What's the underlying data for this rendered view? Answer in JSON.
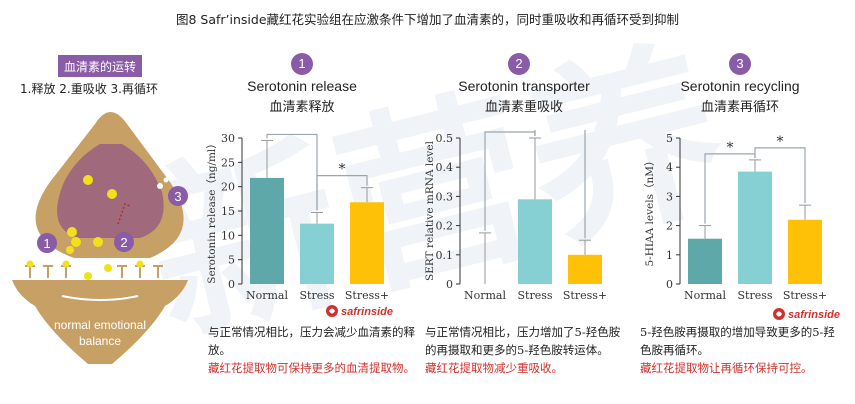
{
  "figure_title": "图8 Safr’inside藏红花实验组在应激条件下增加了血清素的，同时重吸收和再循环受到抑制",
  "legend": {
    "tag": "血清素的运转",
    "list": "1.释放 2.重吸收 3.再循环"
  },
  "diagram": {
    "caption_line1": "normal emotional",
    "caption_line2": "balance",
    "markers": [
      "1",
      "2",
      "3"
    ]
  },
  "watermark": "新营养",
  "brand": {
    "name": "safrinside",
    "mark": "®"
  },
  "colors": {
    "normal": "#5fa8aa",
    "stress": "#86d0d3",
    "stress_plus": "#ffc107",
    "sig": "#9aa5b1",
    "accent": "#8a5ba6",
    "red": "#d0312d"
  },
  "panels": [
    {
      "number": "1",
      "title": "Serotonin release",
      "subtitle": "血清素释放",
      "desc_black": "与正常情况相比，压力会减少血清素的释放。",
      "desc_red": "藏红花提取物可保持更多的血清提取物。"
    },
    {
      "number": "2",
      "title": "Serotonin transporter",
      "subtitle": "血清素重吸收",
      "desc_black": "与正常情况相比，压力增加了5-羟色胺的再摄取和更多的5-羟色胺转运体。",
      "desc_red": "藏红花提取物减少重吸收。"
    },
    {
      "number": "3",
      "title": "Serotonin recycling",
      "subtitle": "血清素再循环",
      "desc_black": "5-羟色胺再摄取的增加导致更多的5-羟色胺再循环。",
      "desc_red": "藏红花提取物让再循环保持可控。"
    }
  ],
  "chart_data": [
    {
      "type": "bar",
      "title": "Serotonin release",
      "ylabel": "Serotonin release（ng/ml）",
      "categories": [
        "Normal",
        "Stress",
        "Stress+"
      ],
      "values": [
        21.8,
        12.4,
        16.8
      ],
      "errors": [
        7.7,
        2.3,
        3.0
      ],
      "ylim": [
        0,
        30
      ],
      "yticks": [
        0,
        5,
        10,
        15,
        20,
        25,
        30
      ],
      "significance": [
        {
          "pair": [
            0,
            1
          ],
          "label": "*"
        },
        {
          "pair": [
            1,
            2
          ],
          "label": "*"
        }
      ]
    },
    {
      "type": "bar",
      "title": "Serotonin transporter",
      "ylabel": "SERT relative mRNA level",
      "categories": [
        "Normal",
        "Stress",
        "Stress+"
      ],
      "values": [
        0.0,
        0.29,
        0.1
      ],
      "errors": [
        0.175,
        0.21,
        0.05
      ],
      "ylim": [
        0,
        0.5
      ],
      "yticks": [
        0,
        0.1,
        0.2,
        0.3,
        0.4,
        0.5
      ],
      "significance": [
        {
          "pair": [
            0,
            1
          ],
          "label": "*"
        },
        {
          "pair": [
            1,
            2
          ],
          "label": "*"
        }
      ]
    },
    {
      "type": "bar",
      "title": "Serotonin recycling",
      "ylabel": "5-HIAA levels（nM）",
      "categories": [
        "Normal",
        "Stress",
        "Stress+"
      ],
      "values": [
        1.55,
        3.85,
        2.2
      ],
      "errors": [
        0.45,
        0.4,
        0.5
      ],
      "ylim": [
        0,
        5
      ],
      "yticks": [
        0,
        1,
        2,
        3,
        4,
        5
      ],
      "significance": [
        {
          "pair": [
            0,
            1
          ],
          "label": "*"
        },
        {
          "pair": [
            1,
            2
          ],
          "label": "*"
        }
      ]
    }
  ]
}
